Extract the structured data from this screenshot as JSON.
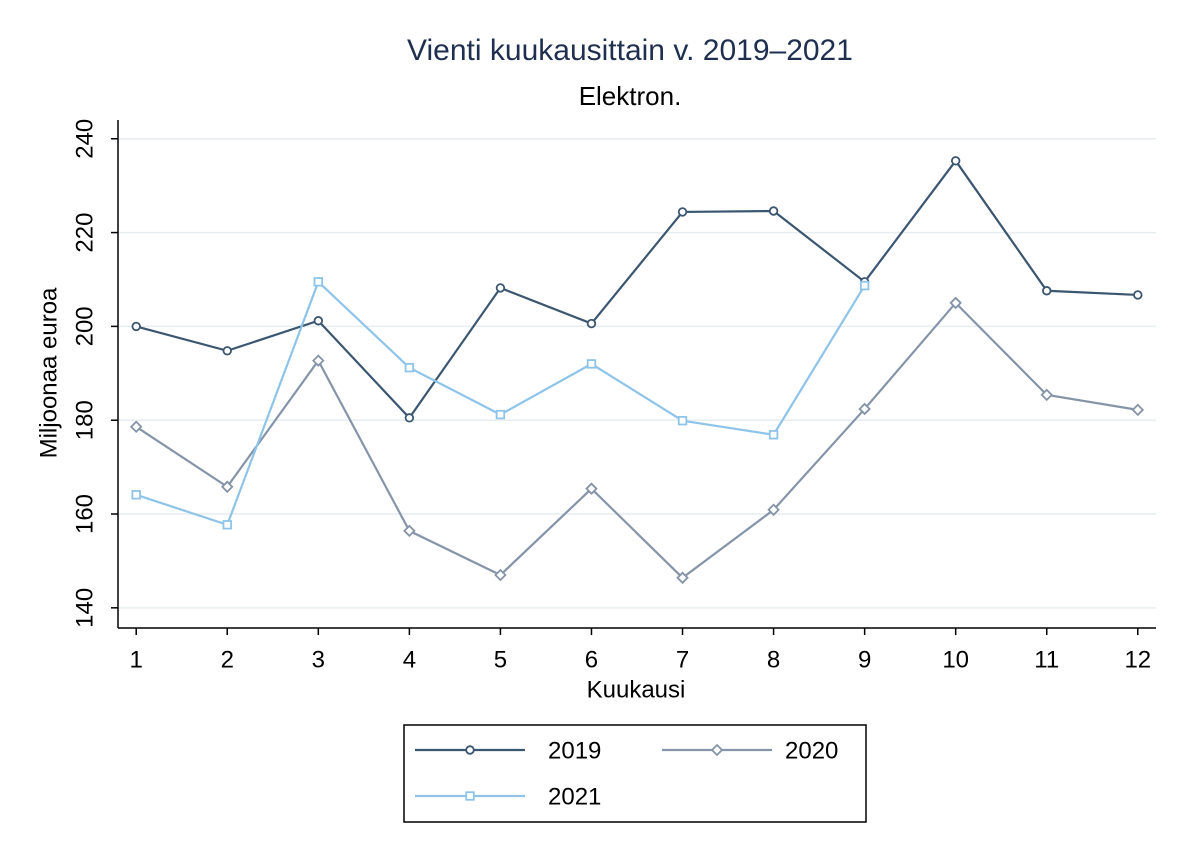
{
  "chart_data": {
    "type": "line",
    "title": "Vienti kuukausittain v. 2019–2021",
    "subtitle": "Elektron.",
    "x_label": "Kuukausi",
    "y_label": "Miljoonaa euroa",
    "x": [
      1,
      2,
      3,
      4,
      5,
      6,
      7,
      8,
      9,
      10,
      11,
      12
    ],
    "series": [
      {
        "name": "2019",
        "color": "#3b5670",
        "marker": "circle",
        "values": [
          200,
          194.8,
          201.2,
          180.5,
          208.2,
          200.6,
          224.4,
          224.6,
          209.5,
          235.3,
          207.6,
          206.7
        ]
      },
      {
        "name": "2020",
        "color": "#8594a8",
        "marker": "diamond",
        "values": [
          178.6,
          165.8,
          192.7,
          156.4,
          147,
          165.4,
          146.4,
          160.9,
          182.4,
          205,
          185.4,
          182.2
        ]
      },
      {
        "name": "2021",
        "color": "#8ec4ea",
        "marker": "square",
        "values": [
          164.1,
          157.7,
          209.5,
          191.2,
          181.2,
          192,
          179.9,
          176.9,
          208.7,
          null,
          null,
          null
        ]
      }
    ],
    "xlim": [
      0.8,
      12.2
    ],
    "xticks": [
      1,
      2,
      3,
      4,
      5,
      6,
      7,
      8,
      9,
      10,
      11,
      12
    ],
    "ylim": [
      135.7,
      244
    ],
    "yticks": [
      140,
      160,
      180,
      200,
      220,
      240
    ],
    "grid": true,
    "legend": "bottom"
  }
}
